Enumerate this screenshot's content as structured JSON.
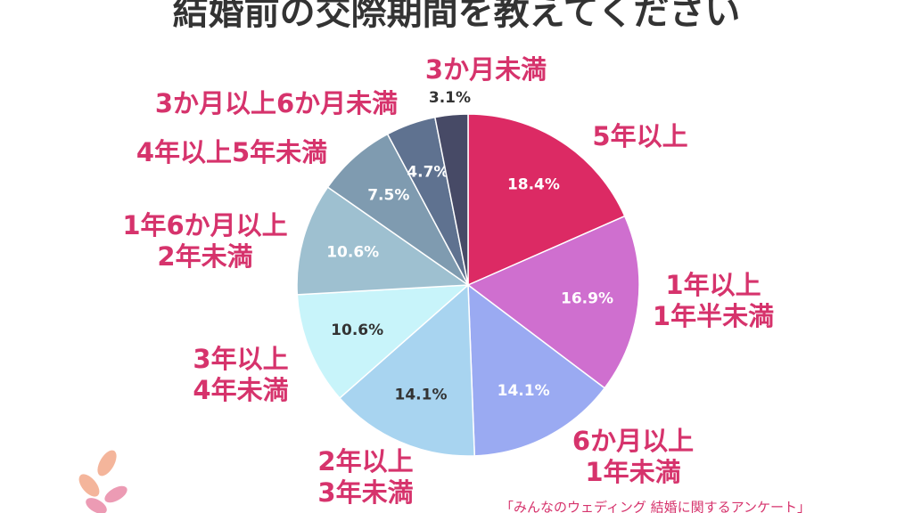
{
  "chart_data": {
    "type": "pie",
    "title": "結婚前の交際期間を教えてください",
    "categories": [
      [
        "5年以上"
      ],
      [
        "1年以上",
        "1年半未満"
      ],
      [
        "6か月以上",
        "1年未満"
      ],
      [
        "2年以上",
        "3年未満"
      ],
      [
        "3年以上",
        "4年未満"
      ],
      [
        "1年6か月以上",
        "2年未満"
      ],
      [
        "4年以上5年未満"
      ],
      [
        "3か月以上6か月未満"
      ],
      [
        "3か月未満"
      ]
    ],
    "values": [
      18.4,
      16.9,
      14.1,
      14.1,
      10.6,
      10.6,
      7.5,
      4.7,
      3.1
    ],
    "value_labels": [
      "18.4%",
      "16.9%",
      "14.1%",
      "14.1%",
      "10.6%",
      "10.6%",
      "7.5%",
      "4.7%",
      "3.1%"
    ],
    "colors": [
      "#dc2a64",
      "#cf6fcf",
      "#9aaaf2",
      "#a8d4f0",
      "#c8f4fa",
      "#9ec0d0",
      "#7f9bb0",
      "#5f7290",
      "#474a66"
    ],
    "value_label_colors": [
      "#ffffff",
      "#ffffff",
      "#ffffff",
      "#333333",
      "#333333",
      "#ffffff",
      "#ffffff",
      "#ffffff",
      "#333333"
    ],
    "source": "「みんなのウェディング 結婚に関するアンケート」"
  }
}
